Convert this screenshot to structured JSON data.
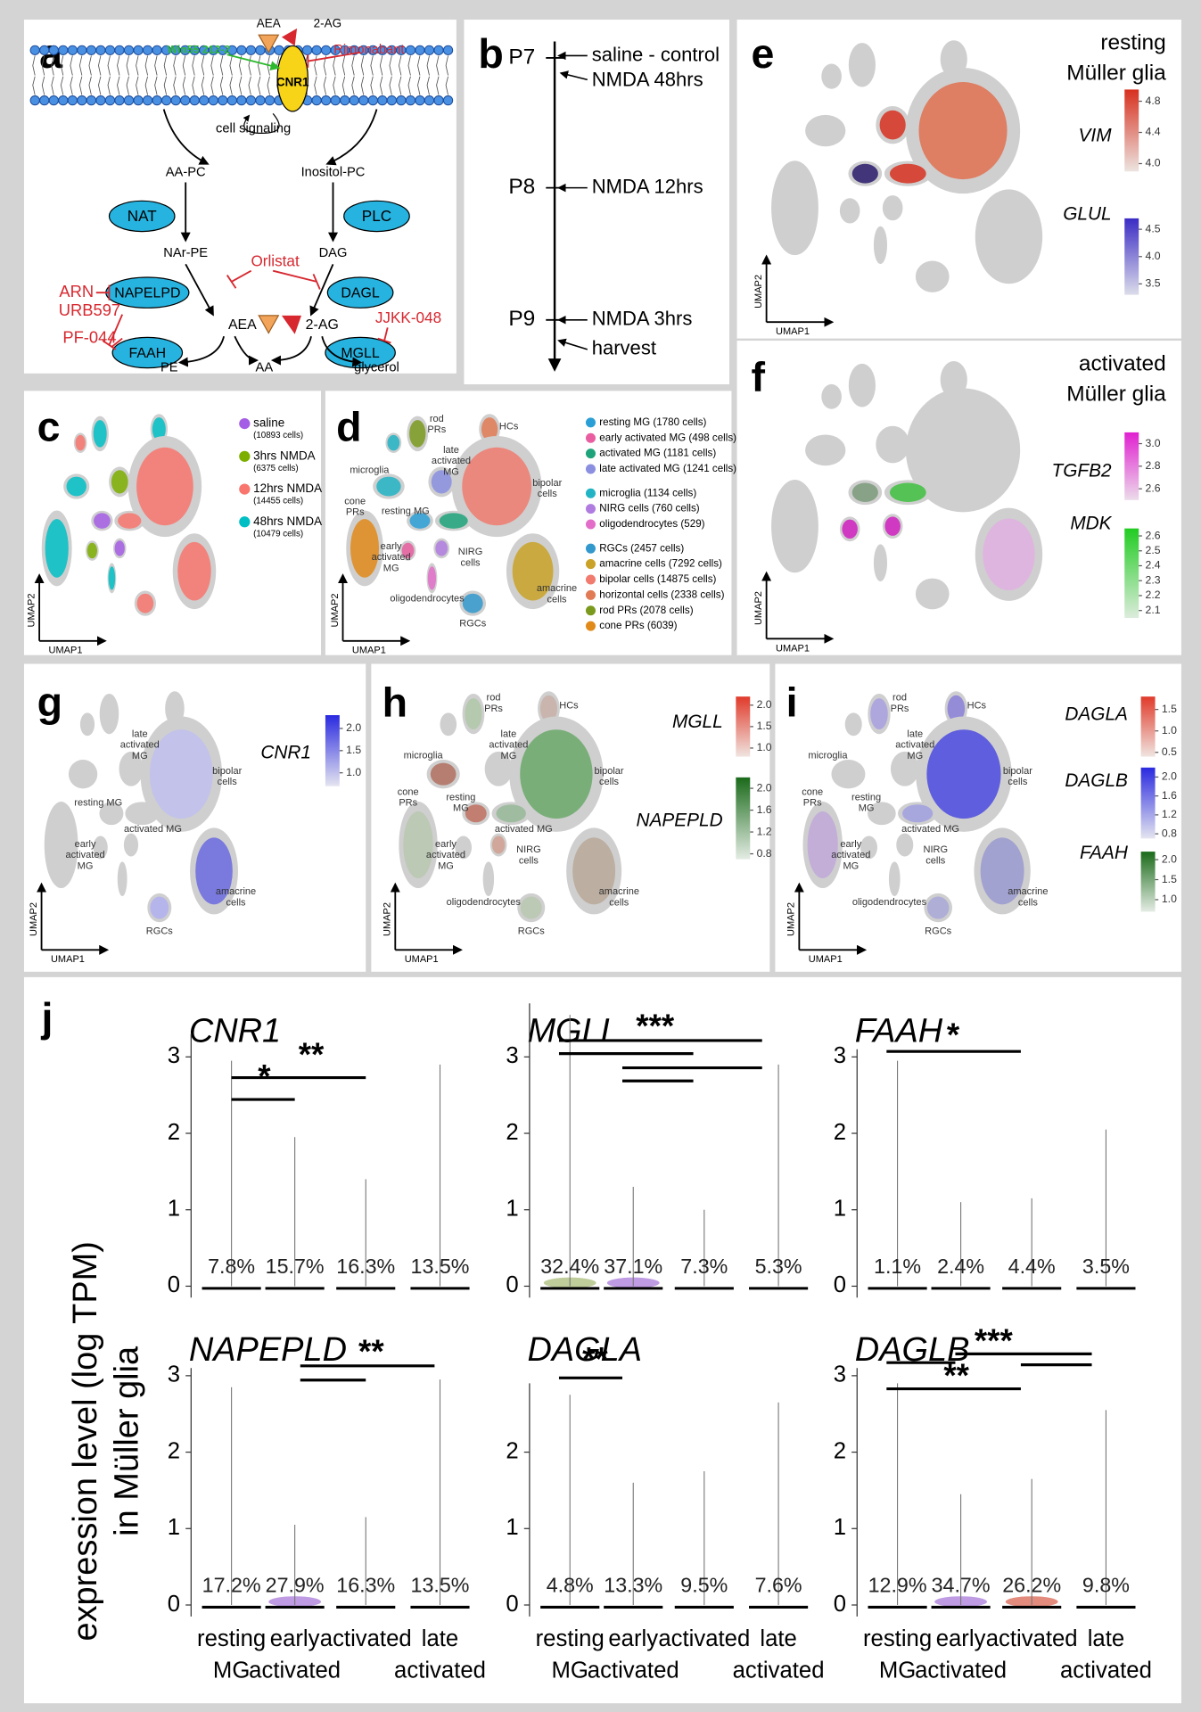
{
  "figure": {
    "a": {
      "label": "a",
      "aea_top": "AEA",
      "ag_top": "2-AG",
      "win": "Win55 212-2",
      "rimonabant": "Rimonabant",
      "cnr1": "CNR1",
      "signaling": "cell signaling",
      "aapc": "AA-PC",
      "inositol": "Inositol-PC",
      "nat": "NAT",
      "plc": "PLC",
      "narpe": "NAr-PE",
      "dag": "DAG",
      "arn": "ARN",
      "napelpd": "NAPELPD",
      "orlistat": "Orlistat",
      "dagl": "DAGL",
      "aea": "AEA",
      "ag": "2-AG",
      "urb": "URB597",
      "pf": "PF-044",
      "faah": "FAAH",
      "mgll": "MGLL",
      "jjkk": "JJKK-048",
      "pe": "PE",
      "aa": "AA",
      "glycerol": "glycerol"
    },
    "b": {
      "label": "b",
      "p7": "P7",
      "saline": "saline - control",
      "nmda48": "NMDA 48hrs",
      "p8": "P8",
      "nmda12": "NMDA 12hrs",
      "p9": "P9",
      "nmda3": "NMDA 3hrs",
      "harvest": "harvest"
    },
    "c": {
      "label": "c",
      "axis_x": "UMAP1",
      "axis_y": "UMAP2",
      "legend": [
        {
          "name": "saline",
          "count": "(10893 cells)",
          "color": "#a45ee5"
        },
        {
          "name": "3hrs NMDA",
          "count": "(6375 cells)",
          "color": "#7cae00"
        },
        {
          "name": "12hrs NMDA",
          "count": "(14455 cells)",
          "color": "#f8766d"
        },
        {
          "name": "48hrs NMDA",
          "count": "(10479 cells)",
          "color": "#00bfc4"
        }
      ]
    },
    "d": {
      "label": "d",
      "axis_x": "UMAP1",
      "axis_y": "UMAP2",
      "legend": [
        {
          "name": "resting MG  (1780 cells)",
          "color": "#2a9fd6"
        },
        {
          "name": "early activated MG  (498 cells)",
          "color": "#e85ea0"
        },
        {
          "name": "activated MG  (1181 cells)",
          "color": "#1ea37a"
        },
        {
          "name": "late activated MG  (1241 cells)",
          "color": "#8a8fe0"
        },
        {
          "name": "microglia  (1134 cells)",
          "color": "#22b3c4"
        },
        {
          "name": "NIRG cells  (760 cells)",
          "color": "#b07ce0"
        },
        {
          "name": "oligodendrocytes  (529)",
          "color": "#e26ec9"
        },
        {
          "name": "RGCs  (2457 cells)",
          "color": "#3399cc"
        },
        {
          "name": "amacrine cells  (7292 cells)",
          "color": "#c9a227"
        },
        {
          "name": "bipolar cells  (14875 cells)",
          "color": "#f07b6e"
        },
        {
          "name": "horizontal cells  (2338 cells)",
          "color": "#e07b55"
        },
        {
          "name": "rod PRs  (2078 cells)",
          "color": "#7a9a1e"
        },
        {
          "name": "cone PRs  (6039)",
          "color": "#e08a1a"
        }
      ],
      "labels": {
        "rod": [
          "rod",
          "PRs"
        ],
        "hcs": [
          "HCs"
        ],
        "microglia": [
          "microglia"
        ],
        "late": [
          "late",
          "activated",
          "MG"
        ],
        "bipolar": [
          "bipolar",
          "cells"
        ],
        "cone": [
          "cone",
          "PRs"
        ],
        "resting": [
          "resting MG"
        ],
        "early": [
          "early",
          "activated",
          "MG"
        ],
        "nirg": [
          "NIRG",
          "cells"
        ],
        "oligo": [
          "oligodendrocytes"
        ],
        "rgcs": [
          "RGCs"
        ],
        "amacrine": [
          "amacrine",
          "cells"
        ]
      }
    },
    "e": {
      "label": "e",
      "axis_x": "UMAP1",
      "axis_y": "UMAP2",
      "title": [
        "resting",
        "Müller glia"
      ],
      "scales": [
        {
          "gene": "VIM",
          "lim": [
            3.9,
            4.95
          ],
          "ticks": [
            4.8,
            4.4,
            {
              "value": 4,
              "label": "4.0"
            }
          ],
          "colors": [
            "#ece4e0",
            "#d7301f"
          ]
        },
        {
          "gene": "GLUL",
          "lim": [
            3.3,
            4.7
          ],
          "ticks": [
            4.5,
            {
              "value": 4,
              "label": "4.0"
            },
            3.5
          ],
          "colors": [
            "#dcdcea",
            "#3b2cc4"
          ]
        }
      ]
    },
    "f": {
      "label": "f",
      "axis_x": "UMAP1",
      "axis_y": "UMAP2",
      "title": [
        "activated",
        "Müller glia"
      ],
      "scales": [
        {
          "gene": "TGFB2",
          "lim": [
            2.5,
            3.1
          ],
          "ticks": [
            {
              "value": 3,
              "label": "3.0"
            },
            2.8,
            2.6
          ],
          "colors": [
            "#ecdcea",
            "#e020d0"
          ]
        },
        {
          "gene": "MDK",
          "lim": [
            2.05,
            2.65
          ],
          "ticks": [
            2.6,
            2.5,
            2.4,
            2.3,
            2.2,
            2.1
          ],
          "colors": [
            "#dcecdc",
            "#22cc22"
          ]
        }
      ]
    },
    "g": {
      "label": "g",
      "axis_x": "UMAP1",
      "axis_y": "UMAP2",
      "scales": [
        {
          "gene": "CNR1",
          "lim": [
            0.7,
            2.3
          ],
          "ticks": [
            {
              "value": 2,
              "label": "2.0"
            },
            1.5,
            {
              "value": 1,
              "label": "1.0"
            }
          ],
          "colors": [
            "#e4e4f0",
            "#2a2ae0"
          ]
        }
      ],
      "labels": {
        "late": [
          "late",
          "activated",
          "MG"
        ],
        "resting": [
          "resting MG"
        ],
        "bipolar": [
          "bipolar",
          "cells"
        ],
        "activated": [
          "activated MG"
        ],
        "early": [
          "early",
          "activated",
          "MG"
        ],
        "rgcs": [
          "RGCs"
        ],
        "amacrine": [
          "amacrine",
          "cells"
        ]
      }
    },
    "h": {
      "label": "h",
      "axis_x": "UMAP1",
      "axis_y": "UMAP2",
      "scales": [
        {
          "gene": "MGLL",
          "lim": [
            0.8,
            2.2
          ],
          "ticks": [
            {
              "value": 2,
              "label": "2.0"
            },
            1.5,
            {
              "value": 1,
              "label": "1.0"
            }
          ],
          "colors": [
            "#f0e4e0",
            "#e03a2a"
          ]
        },
        {
          "gene": "NAPEPLD",
          "lim": [
            0.7,
            2.2
          ],
          "ticks": [
            {
              "value": 2,
              "label": "2.0"
            },
            1.6,
            1.2,
            0.8
          ],
          "colors": [
            "#e4ece4",
            "#1a6a1a"
          ]
        }
      ],
      "labels": {
        "rod": [
          "rod",
          "PRs"
        ],
        "hcs": [
          "HCs"
        ],
        "microglia": [
          "microglia"
        ],
        "late": [
          "late",
          "activated",
          "MG"
        ],
        "bipolar": [
          "bipolar",
          "cells"
        ],
        "cone": [
          "cone",
          "PRs"
        ],
        "resting": [
          "resting",
          "MG"
        ],
        "activated": [
          "activated MG"
        ],
        "early": [
          "early",
          "activated",
          "MG"
        ],
        "nirg": [
          "NIRG",
          "cells"
        ],
        "oligo": [
          "oligodendrocytes"
        ],
        "rgcs": [
          "RGCs"
        ],
        "amacrine": [
          "amacrine",
          "cells"
        ]
      }
    },
    "i": {
      "label": "i",
      "axis_x": "UMAP1",
      "axis_y": "UMAP2",
      "scales": [
        {
          "gene": "DAGLA",
          "lim": [
            0.4,
            1.8
          ],
          "ticks": [
            1.5,
            {
              "value": 1,
              "label": "1.0"
            },
            0.5
          ],
          "colors": [
            "#f0e4e0",
            "#e03a2a"
          ]
        },
        {
          "gene": "DAGLB",
          "lim": [
            0.7,
            2.2
          ],
          "ticks": [
            {
              "value": 2,
              "label": "2.0"
            },
            1.6,
            1.2,
            0.8
          ],
          "colors": [
            "#e4e4f0",
            "#2a2ae0"
          ]
        },
        {
          "gene": "FAAH",
          "lim": [
            0.7,
            2.2
          ],
          "ticks": [
            {
              "value": 2,
              "label": "2.0"
            },
            1.5,
            {
              "value": 1,
              "label": "1.0"
            }
          ],
          "colors": [
            "#e4ece4",
            "#1a6a1a"
          ]
        }
      ],
      "labels": {
        "rod": [
          "rod",
          "PRs"
        ],
        "hcs": [
          "HCs"
        ],
        "microglia": [
          "microglia"
        ],
        "late": [
          "late",
          "activated",
          "MG"
        ],
        "bipolar": [
          "bipolar",
          "cells"
        ],
        "cone": [
          "cone",
          "PRs"
        ],
        "resting": [
          "resting",
          "MG"
        ],
        "activated": [
          "activated MG"
        ],
        "early": [
          "early",
          "activated",
          "MG"
        ],
        "nirg": [
          "NIRG",
          "cells"
        ],
        "oligo": [
          "oligodendrocytes"
        ],
        "rgcs": [
          "RGCs"
        ],
        "amacrine": [
          "amacrine",
          "cells"
        ]
      }
    },
    "j": {
      "label": "j",
      "ylabel": [
        "expression level (log TPM)",
        "in Müller glia"
      ],
      "groups": [
        [
          "resting",
          "MG"
        ],
        [
          "early",
          "activated"
        ],
        [
          "activated"
        ],
        [
          "late",
          "activated"
        ]
      ],
      "plots": [
        {
          "gene": "CNR1",
          "ylim": [
            -0.15,
            3.3
          ],
          "yticks": [
            0,
            1,
            2,
            3
          ],
          "max": [
            2.95,
            1.95,
            1.4,
            2.9
          ],
          "percent": [
            "7.8%",
            "15.7%",
            "16.3%",
            "13.5%"
          ],
          "sig": [
            "**",
            "*"
          ]
        },
        {
          "gene": "MGLL",
          "ylim": [
            -0.15,
            3.7
          ],
          "yticks": [
            0,
            1,
            2,
            3
          ],
          "max": [
            3.55,
            1.3,
            1.0,
            2.9
          ],
          "percent": [
            "32.4%",
            "37.1%",
            "7.3%",
            "5.3%"
          ],
          "sig": [
            "***"
          ]
        },
        {
          "gene": "FAAH",
          "ylim": [
            -0.15,
            3.1
          ],
          "yticks": [
            0,
            1,
            2,
            3
          ],
          "max": [
            2.95,
            1.1,
            1.15,
            2.05
          ],
          "percent": [
            "1.1%",
            "2.4%",
            "4.4%",
            "3.5%"
          ],
          "sig": [
            "*"
          ]
        },
        {
          "gene": "NAPEPLD",
          "ylim": [
            -0.15,
            3.1
          ],
          "yticks": [
            0,
            1,
            2,
            3
          ],
          "max": [
            2.85,
            1.05,
            1.15,
            2.95
          ],
          "percent": [
            "17.2%",
            "27.9%",
            "16.3%",
            "13.5%"
          ],
          "sig": [
            "**"
          ]
        },
        {
          "gene": "DAGLA",
          "ylim": [
            -0.15,
            2.9
          ],
          "yticks": [
            0,
            1,
            2
          ],
          "max": [
            2.75,
            1.6,
            1.75,
            2.65
          ],
          "percent": [
            "4.8%",
            "13.3%",
            "9.5%",
            "7.6%"
          ],
          "sig": [
            "**"
          ]
        },
        {
          "gene": "DAGLB",
          "ylim": [
            -0.15,
            3.1
          ],
          "yticks": [
            0,
            1,
            2,
            3
          ],
          "max": [
            2.9,
            1.45,
            1.65,
            2.55
          ],
          "percent": [
            "12.9%",
            "34.7%",
            "26.2%",
            "9.8%"
          ],
          "sig": [
            "***",
            "**"
          ]
        }
      ]
    }
  }
}
